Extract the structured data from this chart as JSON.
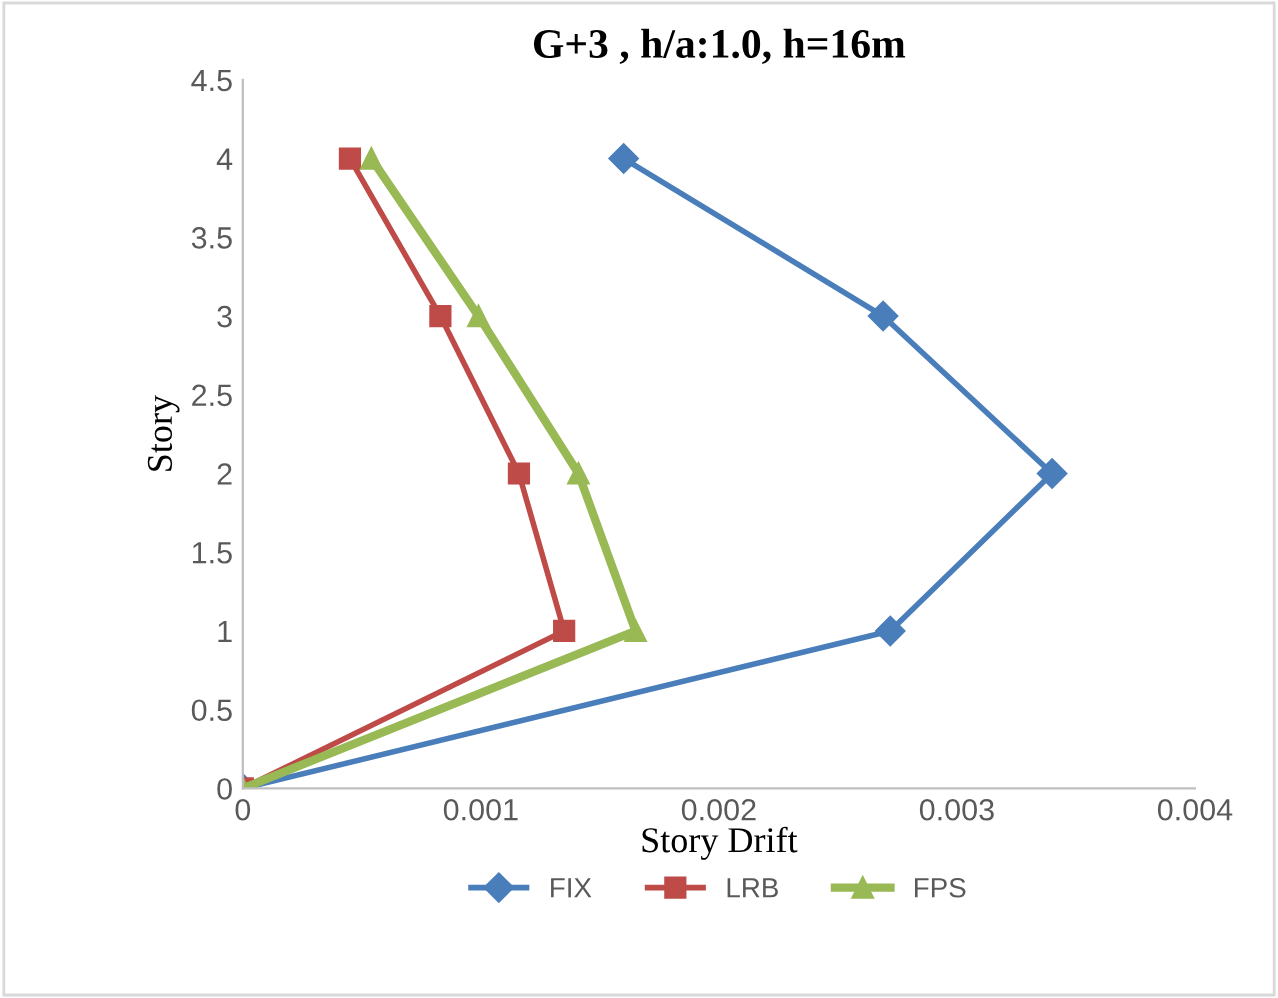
{
  "chart_data": {
    "type": "line",
    "title": "G+3 , h/a:1.0, h=16m",
    "xlabel": "Story Drift",
    "ylabel": "Story",
    "xlim": [
      0,
      0.004
    ],
    "xticks": [
      0,
      0.001,
      0.002,
      0.003,
      0.004
    ],
    "ylim": [
      0,
      4.5
    ],
    "yticks": [
      0,
      0.5,
      1,
      1.5,
      2,
      2.5,
      3,
      3.5,
      4,
      4.5
    ],
    "grid": false,
    "legend": "bottom",
    "series": [
      {
        "name": "FIX",
        "color": "#4a7ebb",
        "marker": "diamond",
        "x": [
          0,
          0.00272,
          0.0034,
          0.00269,
          0.0016
        ],
        "values": [
          0,
          1,
          2,
          3,
          4
        ]
      },
      {
        "name": "LRB",
        "color": "#be4b48",
        "marker": "square",
        "x": [
          0,
          0.00135,
          0.00116,
          0.00083,
          0.00045
        ],
        "values": [
          0,
          1,
          2,
          3,
          4
        ]
      },
      {
        "name": "FPS",
        "color": "#98b954",
        "marker": "triangle",
        "x": [
          0,
          0.00165,
          0.00141,
          0.00099,
          0.00054
        ],
        "values": [
          0,
          1,
          2,
          3,
          4
        ]
      }
    ]
  }
}
